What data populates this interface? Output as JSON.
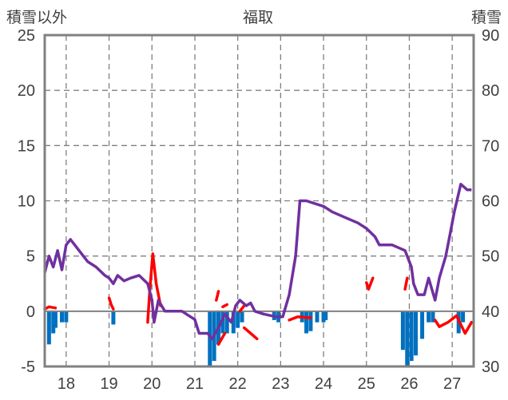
{
  "chart_data": {
    "type": "line",
    "title": "福取",
    "ylabel_left": "積雪以外",
    "ylabel_right": "積雪",
    "categories": [
      "18",
      "19",
      "20",
      "21",
      "22",
      "23",
      "24",
      "25",
      "26",
      "27"
    ],
    "y_left": {
      "min": -5,
      "max": 25,
      "ticks": [
        "-5",
        "0",
        "5",
        "10",
        "15",
        "20",
        "25"
      ]
    },
    "y_right": {
      "min": 30,
      "max": 90,
      "ticks": [
        "30",
        "40",
        "50",
        "60",
        "70",
        "80",
        "90"
      ]
    },
    "grid": true,
    "colors": {
      "snow": "#7030a0",
      "temperature": "#ff0000",
      "precipitation": "#0070c0",
      "grid": "#808080",
      "frame": "#808080"
    },
    "series": [
      {
        "axis": "right",
        "points": [
          [
            17.5,
            47
          ],
          [
            17.6,
            50
          ],
          [
            17.7,
            48
          ],
          [
            17.8,
            51
          ],
          [
            17.9,
            47.5
          ],
          [
            18.0,
            52
          ],
          [
            18.1,
            53
          ],
          [
            18.2,
            52
          ],
          [
            18.3,
            51
          ],
          [
            18.5,
            49
          ],
          [
            18.7,
            48
          ],
          [
            18.9,
            46.5
          ],
          [
            19.0,
            46
          ],
          [
            19.1,
            45
          ],
          [
            19.2,
            46.5
          ],
          [
            19.35,
            45.5
          ],
          [
            19.5,
            46
          ],
          [
            19.7,
            46.5
          ],
          [
            19.9,
            45
          ],
          [
            20.0,
            42
          ],
          [
            20.05,
            38
          ],
          [
            20.15,
            42
          ],
          [
            20.3,
            40
          ],
          [
            20.7,
            40
          ],
          [
            20.9,
            39
          ],
          [
            21.0,
            38.5
          ],
          [
            21.1,
            36
          ],
          [
            21.3,
            36
          ],
          [
            21.4,
            35
          ],
          [
            21.55,
            37
          ],
          [
            21.7,
            39.5
          ],
          [
            21.85,
            38
          ],
          [
            21.95,
            41
          ],
          [
            22.05,
            42
          ],
          [
            22.2,
            41
          ],
          [
            22.3,
            41.5
          ],
          [
            22.4,
            40
          ],
          [
            22.6,
            39.5
          ],
          [
            22.9,
            39
          ],
          [
            23.05,
            39
          ],
          [
            23.2,
            43
          ],
          [
            23.35,
            50
          ],
          [
            23.45,
            60
          ],
          [
            23.6,
            60
          ],
          [
            23.8,
            59.5
          ],
          [
            24.0,
            59
          ],
          [
            24.2,
            58
          ],
          [
            24.5,
            57
          ],
          [
            24.8,
            56
          ],
          [
            25.0,
            55
          ],
          [
            25.2,
            53.5
          ],
          [
            25.3,
            52
          ],
          [
            25.6,
            52
          ],
          [
            25.9,
            51
          ],
          [
            26.05,
            48
          ],
          [
            26.1,
            45
          ],
          [
            26.2,
            43
          ],
          [
            26.35,
            43
          ],
          [
            26.45,
            46
          ],
          [
            26.6,
            42
          ],
          [
            26.7,
            46
          ],
          [
            26.85,
            50
          ],
          [
            26.95,
            54
          ],
          [
            27.05,
            58
          ],
          [
            27.2,
            63
          ],
          [
            27.35,
            62
          ],
          [
            27.45,
            62
          ]
        ]
      },
      {
        "axis": "left",
        "segments": [
          [
            [
              17.5,
              0.2
            ],
            [
              17.6,
              0.4
            ],
            [
              17.75,
              0.3
            ]
          ],
          [
            [
              19.0,
              1.2
            ],
            [
              19.05,
              0.6
            ],
            [
              19.1,
              0.2
            ]
          ],
          [
            [
              19.9,
              -1.0
            ],
            [
              19.95,
              2.0
            ],
            [
              20.02,
              5.2
            ],
            [
              20.1,
              2.5
            ],
            [
              20.2,
              0.5
            ]
          ],
          [
            [
              21.5,
              1.0
            ],
            [
              21.55,
              1.8
            ]
          ],
          [
            [
              21.55,
              -3.0
            ],
            [
              21.7,
              -2.0
            ]
          ],
          [
            [
              21.65,
              0.4
            ],
            [
              21.75,
              0.6
            ]
          ],
          [
            [
              22.05,
              0.0
            ],
            [
              22.15,
              0.5
            ]
          ],
          [
            [
              22.15,
              -1.5
            ],
            [
              22.3,
              -2.0
            ],
            [
              22.45,
              -2.5
            ]
          ],
          [
            [
              23.2,
              -0.8
            ],
            [
              23.4,
              -0.5
            ],
            [
              23.7,
              -0.6
            ]
          ],
          [
            [
              25.0,
              2.6
            ],
            [
              25.05,
              2.0
            ],
            [
              25.15,
              3.0
            ]
          ],
          [
            [
              25.9,
              2.0
            ],
            [
              25.95,
              3.0
            ]
          ],
          [
            [
              26.6,
              -0.8
            ],
            [
              26.7,
              -1.4
            ],
            [
              26.9,
              -1.0
            ],
            [
              27.1,
              -0.4
            ],
            [
              27.3,
              -2.0
            ],
            [
              27.45,
              -1.0
            ]
          ]
        ]
      },
      {
        "axis": "left",
        "type": "bar",
        "bars": [
          [
            17.6,
            -3.0
          ],
          [
            17.7,
            -2.0
          ],
          [
            17.75,
            -1.5
          ],
          [
            17.9,
            -1.0
          ],
          [
            18.0,
            -1.0
          ],
          [
            19.1,
            -1.2
          ],
          [
            21.35,
            -5.0
          ],
          [
            21.45,
            -4.5
          ],
          [
            21.55,
            -3.0
          ],
          [
            21.65,
            -2.0
          ],
          [
            21.75,
            -2.0
          ],
          [
            21.9,
            -2.0
          ],
          [
            22.0,
            -1.5
          ],
          [
            22.1,
            -1.0
          ],
          [
            22.85,
            -0.8
          ],
          [
            22.95,
            -1.0
          ],
          [
            23.5,
            -1.0
          ],
          [
            23.6,
            -2.0
          ],
          [
            23.7,
            -1.8
          ],
          [
            23.85,
            -1.0
          ],
          [
            24.0,
            -1.0
          ],
          [
            24.05,
            -0.8
          ],
          [
            25.85,
            -3.5
          ],
          [
            25.95,
            -5.0
          ],
          [
            26.05,
            -4.5
          ],
          [
            26.15,
            -4.0
          ],
          [
            26.3,
            -2.5
          ],
          [
            26.45,
            -1.0
          ],
          [
            26.55,
            -1.0
          ],
          [
            27.15,
            -2.0
          ],
          [
            27.25,
            -1.0
          ]
        ]
      }
    ]
  }
}
